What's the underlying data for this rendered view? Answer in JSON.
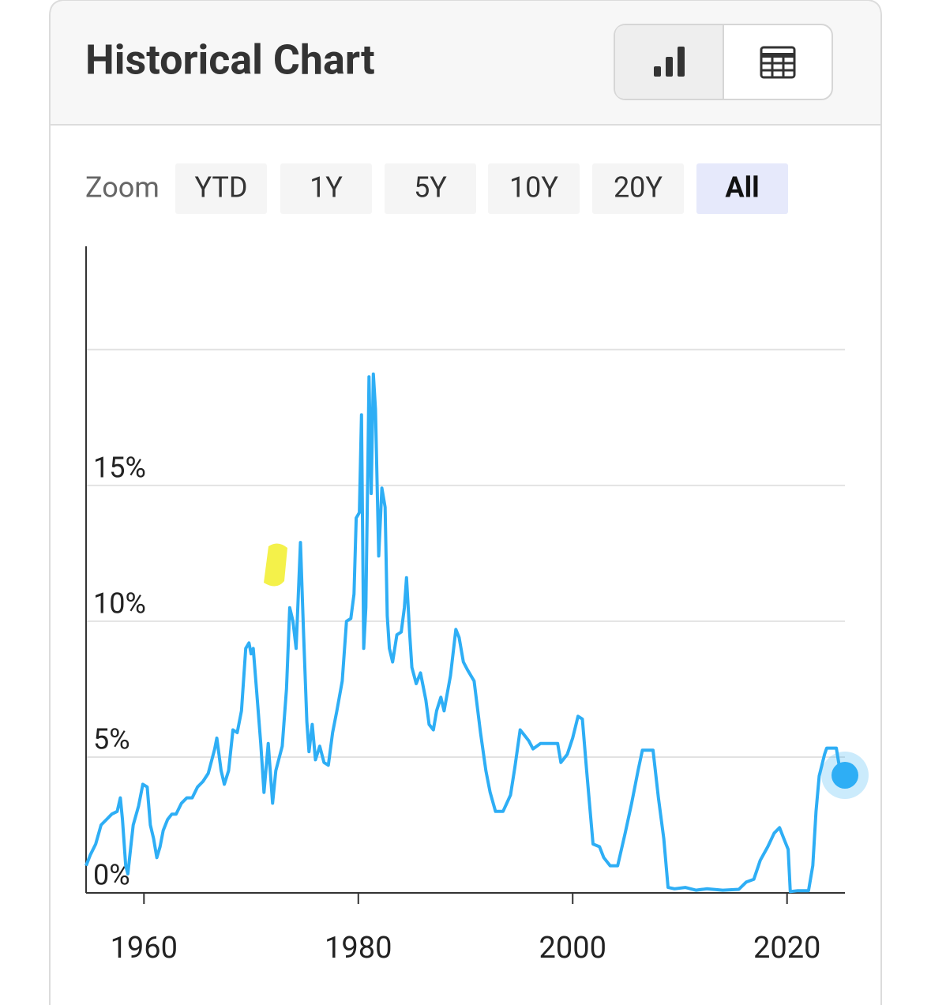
{
  "header": {
    "title": "Historical Chart"
  },
  "zoom": {
    "label": "Zoom",
    "options": [
      "YTD",
      "1Y",
      "5Y",
      "10Y",
      "20Y",
      "All"
    ],
    "selected_index": 5
  },
  "chart_data": {
    "type": "line",
    "x": [
      1954.6,
      1955,
      1955.5,
      1956,
      1956.5,
      1957,
      1957.5,
      1957.8,
      1958,
      1958.3,
      1958.5,
      1958.8,
      1959,
      1959.5,
      1959.9,
      1960.3,
      1960.6,
      1960.9,
      1961.2,
      1961.5,
      1961.8,
      1962.2,
      1962.6,
      1963,
      1963.5,
      1964,
      1964.5,
      1965,
      1965.5,
      1966,
      1966.6,
      1966.8,
      1967.2,
      1967.5,
      1967.9,
      1968.3,
      1968.7,
      1969.1,
      1969.5,
      1969.8,
      1970,
      1970.2,
      1970.5,
      1970.9,
      1971.2,
      1971.6,
      1972,
      1972.3,
      1972.9,
      1973.3,
      1973.6,
      1973.9,
      1974.2,
      1974.6,
      1974.9,
      1975.2,
      1975.4,
      1975.7,
      1976,
      1976.4,
      1976.8,
      1977.2,
      1977.6,
      1978,
      1978.5,
      1978.9,
      1979.3,
      1979.6,
      1979.8,
      1980.1,
      1980.3,
      1980.5,
      1980.7,
      1980.9,
      1981,
      1981.2,
      1981.4,
      1981.6,
      1981.9,
      1982.2,
      1982.5,
      1982.7,
      1982.9,
      1983.2,
      1983.6,
      1984,
      1984.3,
      1984.5,
      1984.8,
      1985,
      1985.4,
      1985.8,
      1986.3,
      1986.6,
      1987,
      1987.3,
      1987.7,
      1988,
      1988.6,
      1989.1,
      1989.4,
      1989.8,
      1990.2,
      1990.8,
      1991.4,
      1991.9,
      1992.3,
      1992.8,
      1993.5,
      1994.2,
      1994.6,
      1995.1,
      1995.5,
      1995.9,
      1996.3,
      1997,
      1997.8,
      1998.6,
      1998.9,
      1999.5,
      2000,
      2000.5,
      2000.9,
      2001.3,
      2001.9,
      2002.5,
      2002.9,
      2003.5,
      2004.2,
      2004.9,
      2005.5,
      2006.1,
      2006.5,
      2007.5,
      2008,
      2008.5,
      2008.9,
      2009.5,
      2010.5,
      2011.5,
      2012.5,
      2014,
      2015.5,
      2016.2,
      2016.9,
      2017.5,
      2018.2,
      2018.8,
      2019.3,
      2019.7,
      2020.1,
      2020.3,
      2021,
      2022,
      2022.4,
      2022.7,
      2023,
      2023.5,
      2023.7,
      2024.6,
      2024.9,
      2025.4
    ],
    "series": [
      {
        "color": "#2eaef5",
        "values": [
          1.0,
          1.4,
          1.8,
          2.5,
          2.7,
          2.9,
          3.0,
          3.5,
          2.7,
          1.0,
          0.7,
          1.8,
          2.5,
          3.2,
          4.0,
          3.9,
          2.5,
          2.0,
          1.3,
          1.7,
          2.3,
          2.7,
          2.9,
          2.9,
          3.3,
          3.5,
          3.5,
          3.9,
          4.1,
          4.4,
          5.3,
          5.7,
          4.5,
          4.0,
          4.5,
          6.0,
          5.9,
          6.7,
          9.0,
          9.2,
          8.8,
          9.0,
          7.5,
          5.5,
          3.7,
          5.5,
          3.3,
          4.5,
          5.4,
          7.5,
          10.5,
          10.0,
          9.0,
          12.9,
          9.5,
          6.3,
          5.2,
          6.2,
          4.9,
          5.4,
          4.8,
          4.7,
          5.9,
          6.7,
          7.8,
          10.0,
          10.1,
          11.0,
          13.8,
          14.0,
          17.6,
          9.0,
          10.5,
          16.0,
          19.0,
          14.7,
          19.1,
          17.8,
          12.4,
          14.9,
          14.2,
          10.2,
          9.0,
          8.5,
          9.5,
          9.6,
          10.5,
          11.6,
          9.5,
          8.3,
          7.7,
          8.1,
          7.1,
          6.2,
          6.0,
          6.7,
          7.2,
          6.7,
          8.0,
          9.7,
          9.4,
          8.5,
          8.2,
          7.8,
          5.9,
          4.5,
          3.7,
          3.0,
          3.0,
          3.6,
          4.6,
          6.0,
          5.8,
          5.6,
          5.3,
          5.5,
          5.5,
          5.5,
          4.8,
          5.1,
          5.7,
          6.5,
          6.4,
          4.5,
          1.8,
          1.7,
          1.3,
          1.0,
          1.0,
          2.2,
          3.3,
          4.5,
          5.25,
          5.25,
          3.5,
          2.0,
          0.2,
          0.15,
          0.2,
          0.1,
          0.15,
          0.1,
          0.13,
          0.4,
          0.5,
          1.2,
          1.7,
          2.2,
          2.4,
          2.0,
          1.6,
          0.05,
          0.08,
          0.08,
          1.0,
          3.0,
          4.3,
          5.1,
          5.33,
          5.33,
          4.6,
          4.33
        ]
      }
    ],
    "xlim": [
      1954.6,
      2025.4
    ],
    "ylim": [
      0,
      23.8
    ],
    "xticks": [
      1960,
      1980,
      2000,
      2020
    ],
    "yticks": [
      {
        "value": 0,
        "label": "0%"
      },
      {
        "value": 5,
        "label": "5%"
      },
      {
        "value": 10,
        "label": "10%"
      },
      {
        "value": 15,
        "label": "15%"
      }
    ],
    "ygrid": [
      0,
      5,
      10,
      15,
      20
    ]
  }
}
